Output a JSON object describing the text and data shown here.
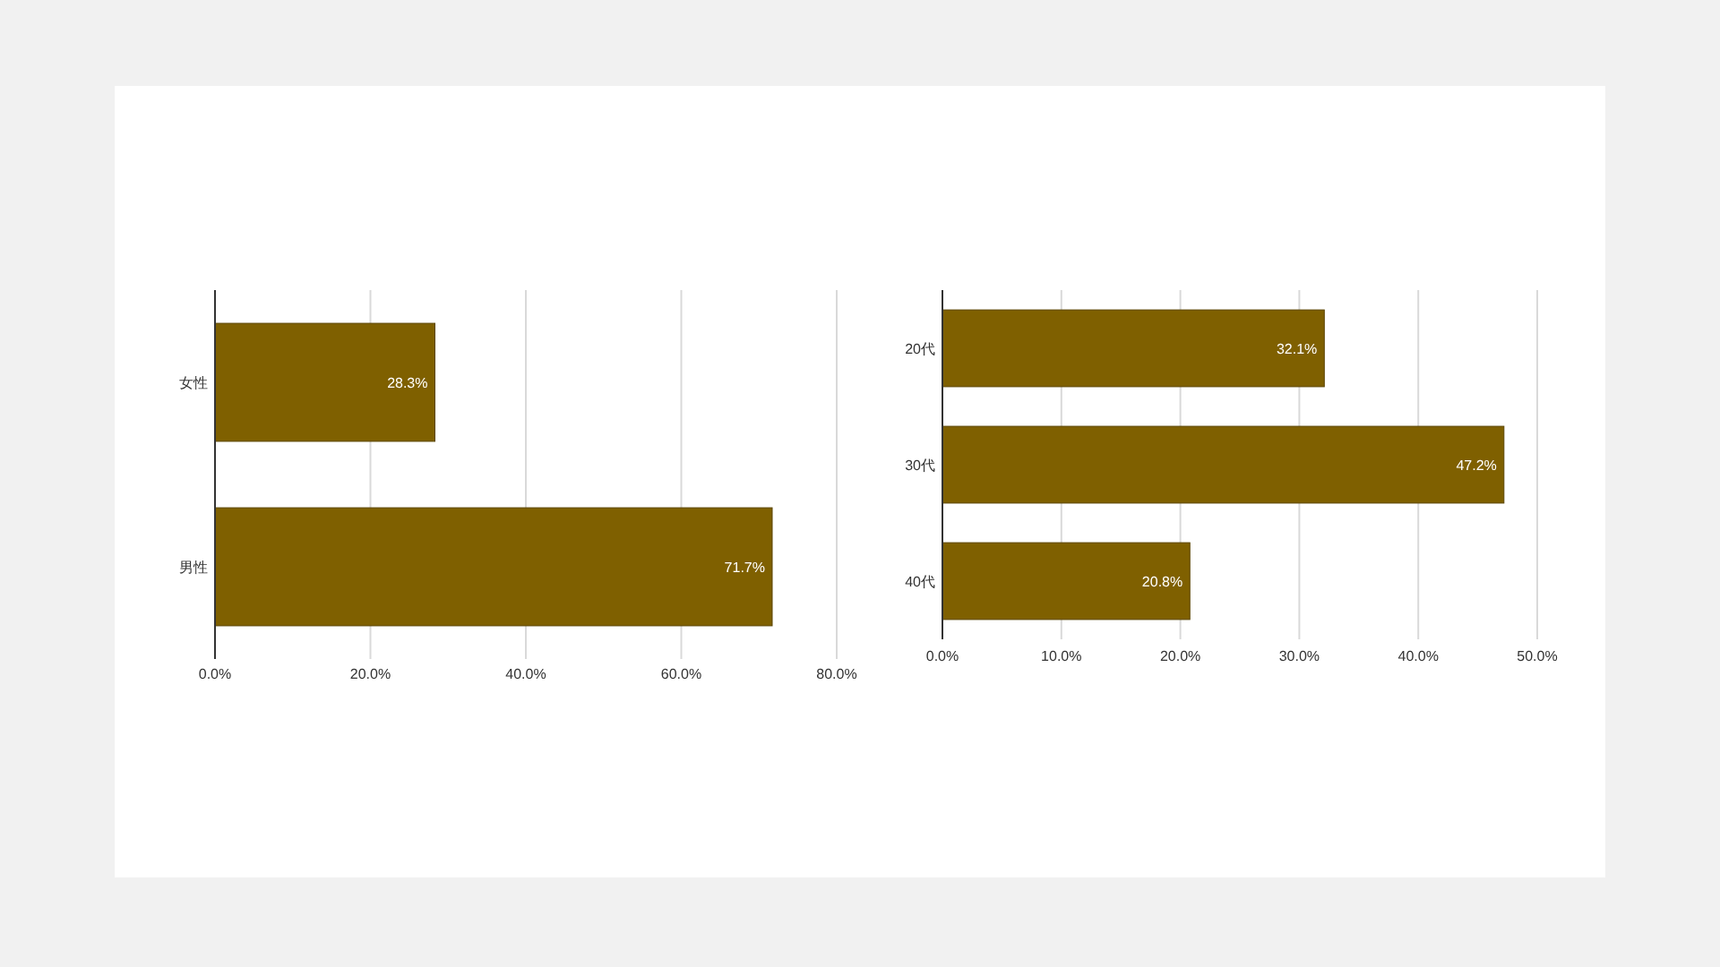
{
  "chart_data": [
    {
      "type": "bar",
      "orientation": "horizontal",
      "categories": [
        "女性",
        "男性"
      ],
      "values": [
        28.3,
        71.7
      ],
      "value_labels": [
        "28.3%",
        "71.7%"
      ],
      "color": "#7f6000",
      "xlim": [
        0,
        80
      ],
      "xticks": [
        {
          "value": 0,
          "label": "0.0%"
        },
        {
          "value": 20,
          "label": "20.0%"
        },
        {
          "value": 40,
          "label": "40.0%"
        },
        {
          "value": 60,
          "label": "60.0%"
        },
        {
          "value": 80,
          "label": "80.0%"
        }
      ],
      "grid": "x"
    },
    {
      "type": "bar",
      "orientation": "horizontal",
      "categories": [
        "20代",
        "30代",
        "40代"
      ],
      "values": [
        32.1,
        47.2,
        20.8
      ],
      "value_labels": [
        "32.1%",
        "47.2%",
        "20.8%"
      ],
      "color": "#7f6000",
      "xlim": [
        0,
        50
      ],
      "xticks": [
        {
          "value": 0,
          "label": "0.0%"
        },
        {
          "value": 10,
          "label": "10.0%"
        },
        {
          "value": 20,
          "label": "20.0%"
        },
        {
          "value": 30,
          "label": "30.0%"
        },
        {
          "value": 40,
          "label": "40.0%"
        },
        {
          "value": 50,
          "label": "50.0%"
        }
      ],
      "grid": "x"
    }
  ]
}
